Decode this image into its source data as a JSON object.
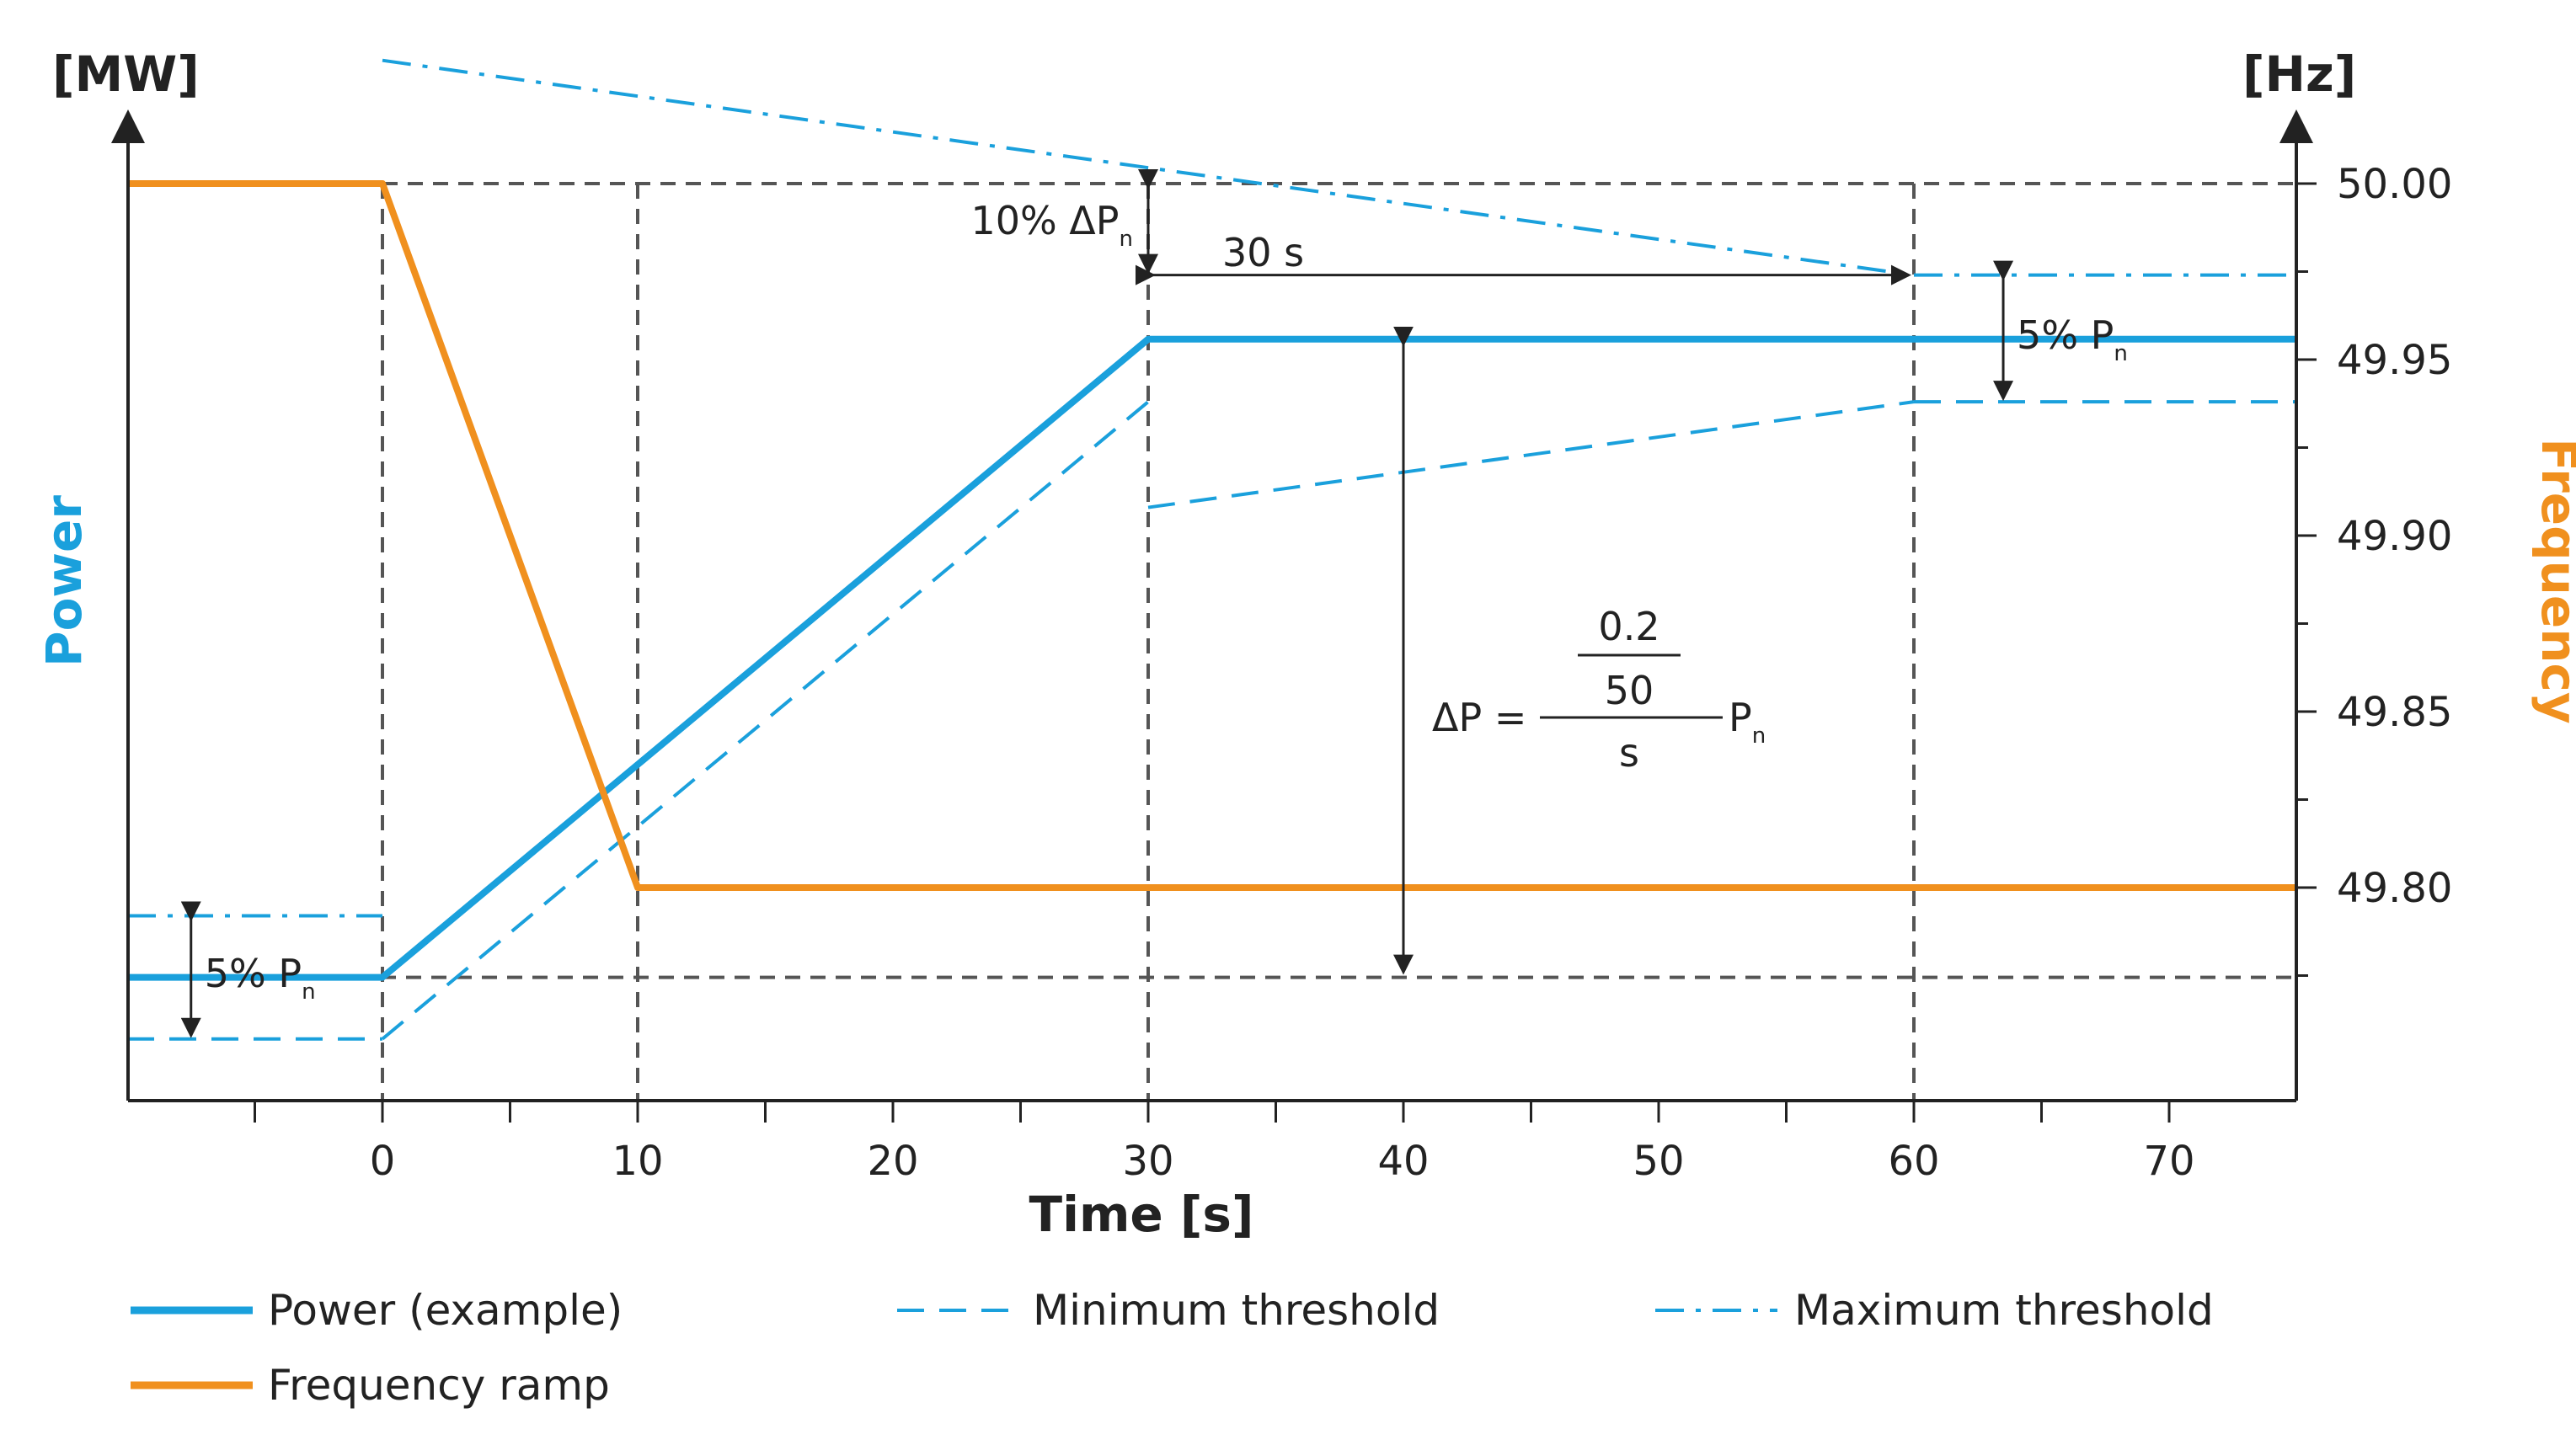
{
  "chart_data": {
    "type": "line",
    "title": "",
    "xlabel": "Time [s]",
    "y_left_label": "Power",
    "y_left_unit": "[MW]",
    "y_right_label": "Frequency",
    "y_right_unit": "[Hz]",
    "xlim": [
      -10,
      75
    ],
    "ylim_right": [
      49.745,
      50.005
    ],
    "x_ticks": [
      0,
      10,
      20,
      30,
      40,
      50,
      60,
      70
    ],
    "x_tick_labels": [
      "0",
      "10",
      "20",
      "30",
      "40",
      "50",
      "60",
      "70"
    ],
    "y_right_ticks": [
      50.0,
      49.95,
      49.9,
      49.85,
      49.8
    ],
    "y_right_tick_labels": [
      "50.00",
      "49.95",
      "49.90",
      "49.85",
      "49.80"
    ],
    "grid": false,
    "reference_lines": {
      "vertical_x": [
        0,
        10,
        30,
        60
      ],
      "horizontal_y_hz": [
        50.0,
        49.7745
      ]
    },
    "series": [
      {
        "name": "Power (example)",
        "style": "solid",
        "color": "#1aa0dc",
        "x": [
          -10,
          0,
          30,
          75
        ],
        "y": [
          49.7745,
          49.7745,
          49.9558,
          49.9558
        ]
      },
      {
        "name": "Minimum threshold",
        "style": "dashed",
        "color": "#1aa0dc",
        "segments": [
          {
            "x": [
              -10,
              0
            ],
            "y": [
              49.757,
              49.757
            ]
          },
          {
            "x": [
              0,
              30
            ],
            "y": [
              49.757,
              49.938
            ]
          },
          {
            "x": [
              30,
              60
            ],
            "y": [
              49.908,
              49.938
            ]
          },
          {
            "x": [
              60,
              75
            ],
            "y": [
              49.938,
              49.938
            ]
          }
        ]
      },
      {
        "name": "Maximum threshold",
        "style": "dashdot",
        "color": "#1aa0dc",
        "segments": [
          {
            "x": [
              -10,
              0
            ],
            "y": [
              49.792,
              49.792
            ]
          },
          {
            "x": [
              0,
              60
            ],
            "y": [
              50.035,
              49.974
            ]
          },
          {
            "x": [
              60,
              75
            ],
            "y": [
              49.974,
              49.974
            ]
          }
        ]
      },
      {
        "name": "Frequency ramp",
        "style": "solid",
        "color": "#f0901e",
        "x": [
          -10,
          0,
          10,
          75
        ],
        "y": [
          50.0,
          50.0,
          49.8,
          49.8
        ]
      }
    ],
    "annotations": {
      "ten_percent": "10% ΔP",
      "ten_percent_sub": "n",
      "thirty_s": "30 s",
      "five_percent_right": "5% P",
      "five_percent_right_sub": "n",
      "five_percent_left": "5% P",
      "five_percent_left_sub": "n",
      "formula_lhs": "ΔP =",
      "formula_num": "0.2",
      "formula_mid": "50",
      "formula_den": "s",
      "formula_rhs": "P",
      "formula_rhs_sub": "n"
    },
    "legend_position": "bottom",
    "colors": {
      "power": "#1aa0dc",
      "frequency": "#f0901e",
      "reference": "#555555",
      "axis": "#222222"
    }
  }
}
